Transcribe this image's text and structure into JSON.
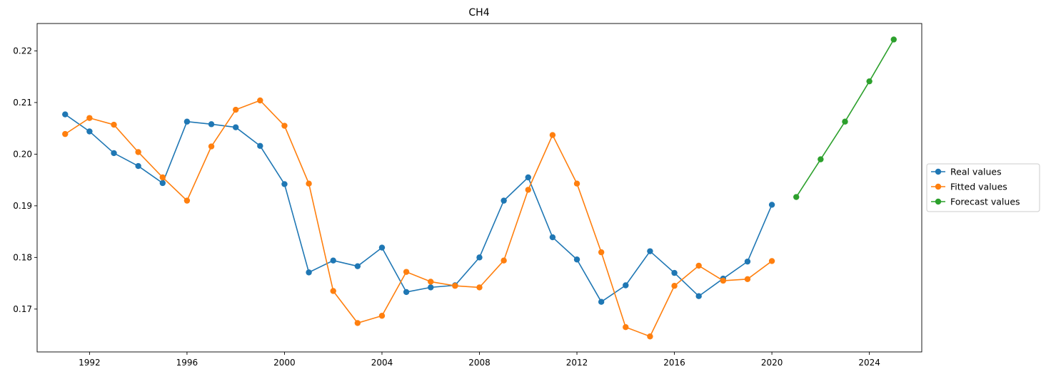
{
  "chart_data": {
    "type": "line",
    "title": "CH4",
    "xlabel": "",
    "ylabel": "",
    "xlim": [
      1989.85,
      1926.15
    ],
    "ylim": [
      0.1617,
      0.2253
    ],
    "x_ticks": [
      1992,
      1996,
      2000,
      2004,
      2008,
      2012,
      2016,
      2020,
      2024
    ],
    "x_tick_labels": [
      "1992",
      "1996",
      "2000",
      "2004",
      "2008",
      "2012",
      "2016",
      "2020",
      "2024"
    ],
    "y_ticks": [
      0.17,
      0.18,
      0.19,
      0.2,
      0.21,
      0.22
    ],
    "y_tick_labels": [
      "0.17",
      "0.18",
      "0.19",
      "0.20",
      "0.21",
      "0.22"
    ],
    "grid": false,
    "legend_position": "right, outside plot",
    "series": [
      {
        "name": "Real values",
        "color": "#1f77b4",
        "x": [
          1991,
          1992,
          1993,
          1994,
          1995,
          1996,
          1997,
          1998,
          1999,
          2000,
          2001,
          2002,
          2003,
          2004,
          2005,
          2006,
          2007,
          2008,
          2009,
          2010,
          2011,
          2012,
          2013,
          2014,
          2015,
          2016,
          2017,
          2018,
          2019,
          2020
        ],
        "y": [
          0.2077,
          0.2044,
          0.2002,
          0.1977,
          0.1944,
          0.2063,
          0.2058,
          0.2052,
          0.2016,
          0.1942,
          0.1771,
          0.1794,
          0.1783,
          0.1819,
          0.1733,
          0.1742,
          0.1746,
          0.18,
          0.191,
          0.1955,
          0.1839,
          0.1796,
          0.1714,
          0.1746,
          0.1812,
          0.177,
          0.1725,
          0.1759,
          0.1792,
          0.1902
        ]
      },
      {
        "name": "Fitted values",
        "color": "#ff7f0e",
        "x": [
          1991,
          1992,
          1993,
          1994,
          1995,
          1996,
          1997,
          1998,
          1999,
          2000,
          2001,
          2002,
          2003,
          2004,
          2005,
          2006,
          2007,
          2008,
          2009,
          2010,
          2011,
          2012,
          2013,
          2014,
          2015,
          2016,
          2017,
          2018,
          2019,
          2020
        ],
        "y": [
          0.2039,
          0.207,
          0.2057,
          0.2004,
          0.1955,
          0.191,
          0.2015,
          0.2086,
          0.2104,
          0.2055,
          0.1943,
          0.1735,
          0.1673,
          0.1687,
          0.1772,
          0.1753,
          0.1745,
          0.1742,
          0.1794,
          0.1931,
          0.2037,
          0.1943,
          0.181,
          0.1665,
          0.1647,
          0.1745,
          0.1784,
          0.1755,
          0.1758,
          0.1793
        ]
      },
      {
        "name": "Forecast values",
        "color": "#2ca02c",
        "x": [
          2021,
          2022,
          2023,
          2024,
          2025
        ],
        "y": [
          0.1917,
          0.199,
          0.2063,
          0.2141,
          0.2222
        ]
      }
    ]
  }
}
